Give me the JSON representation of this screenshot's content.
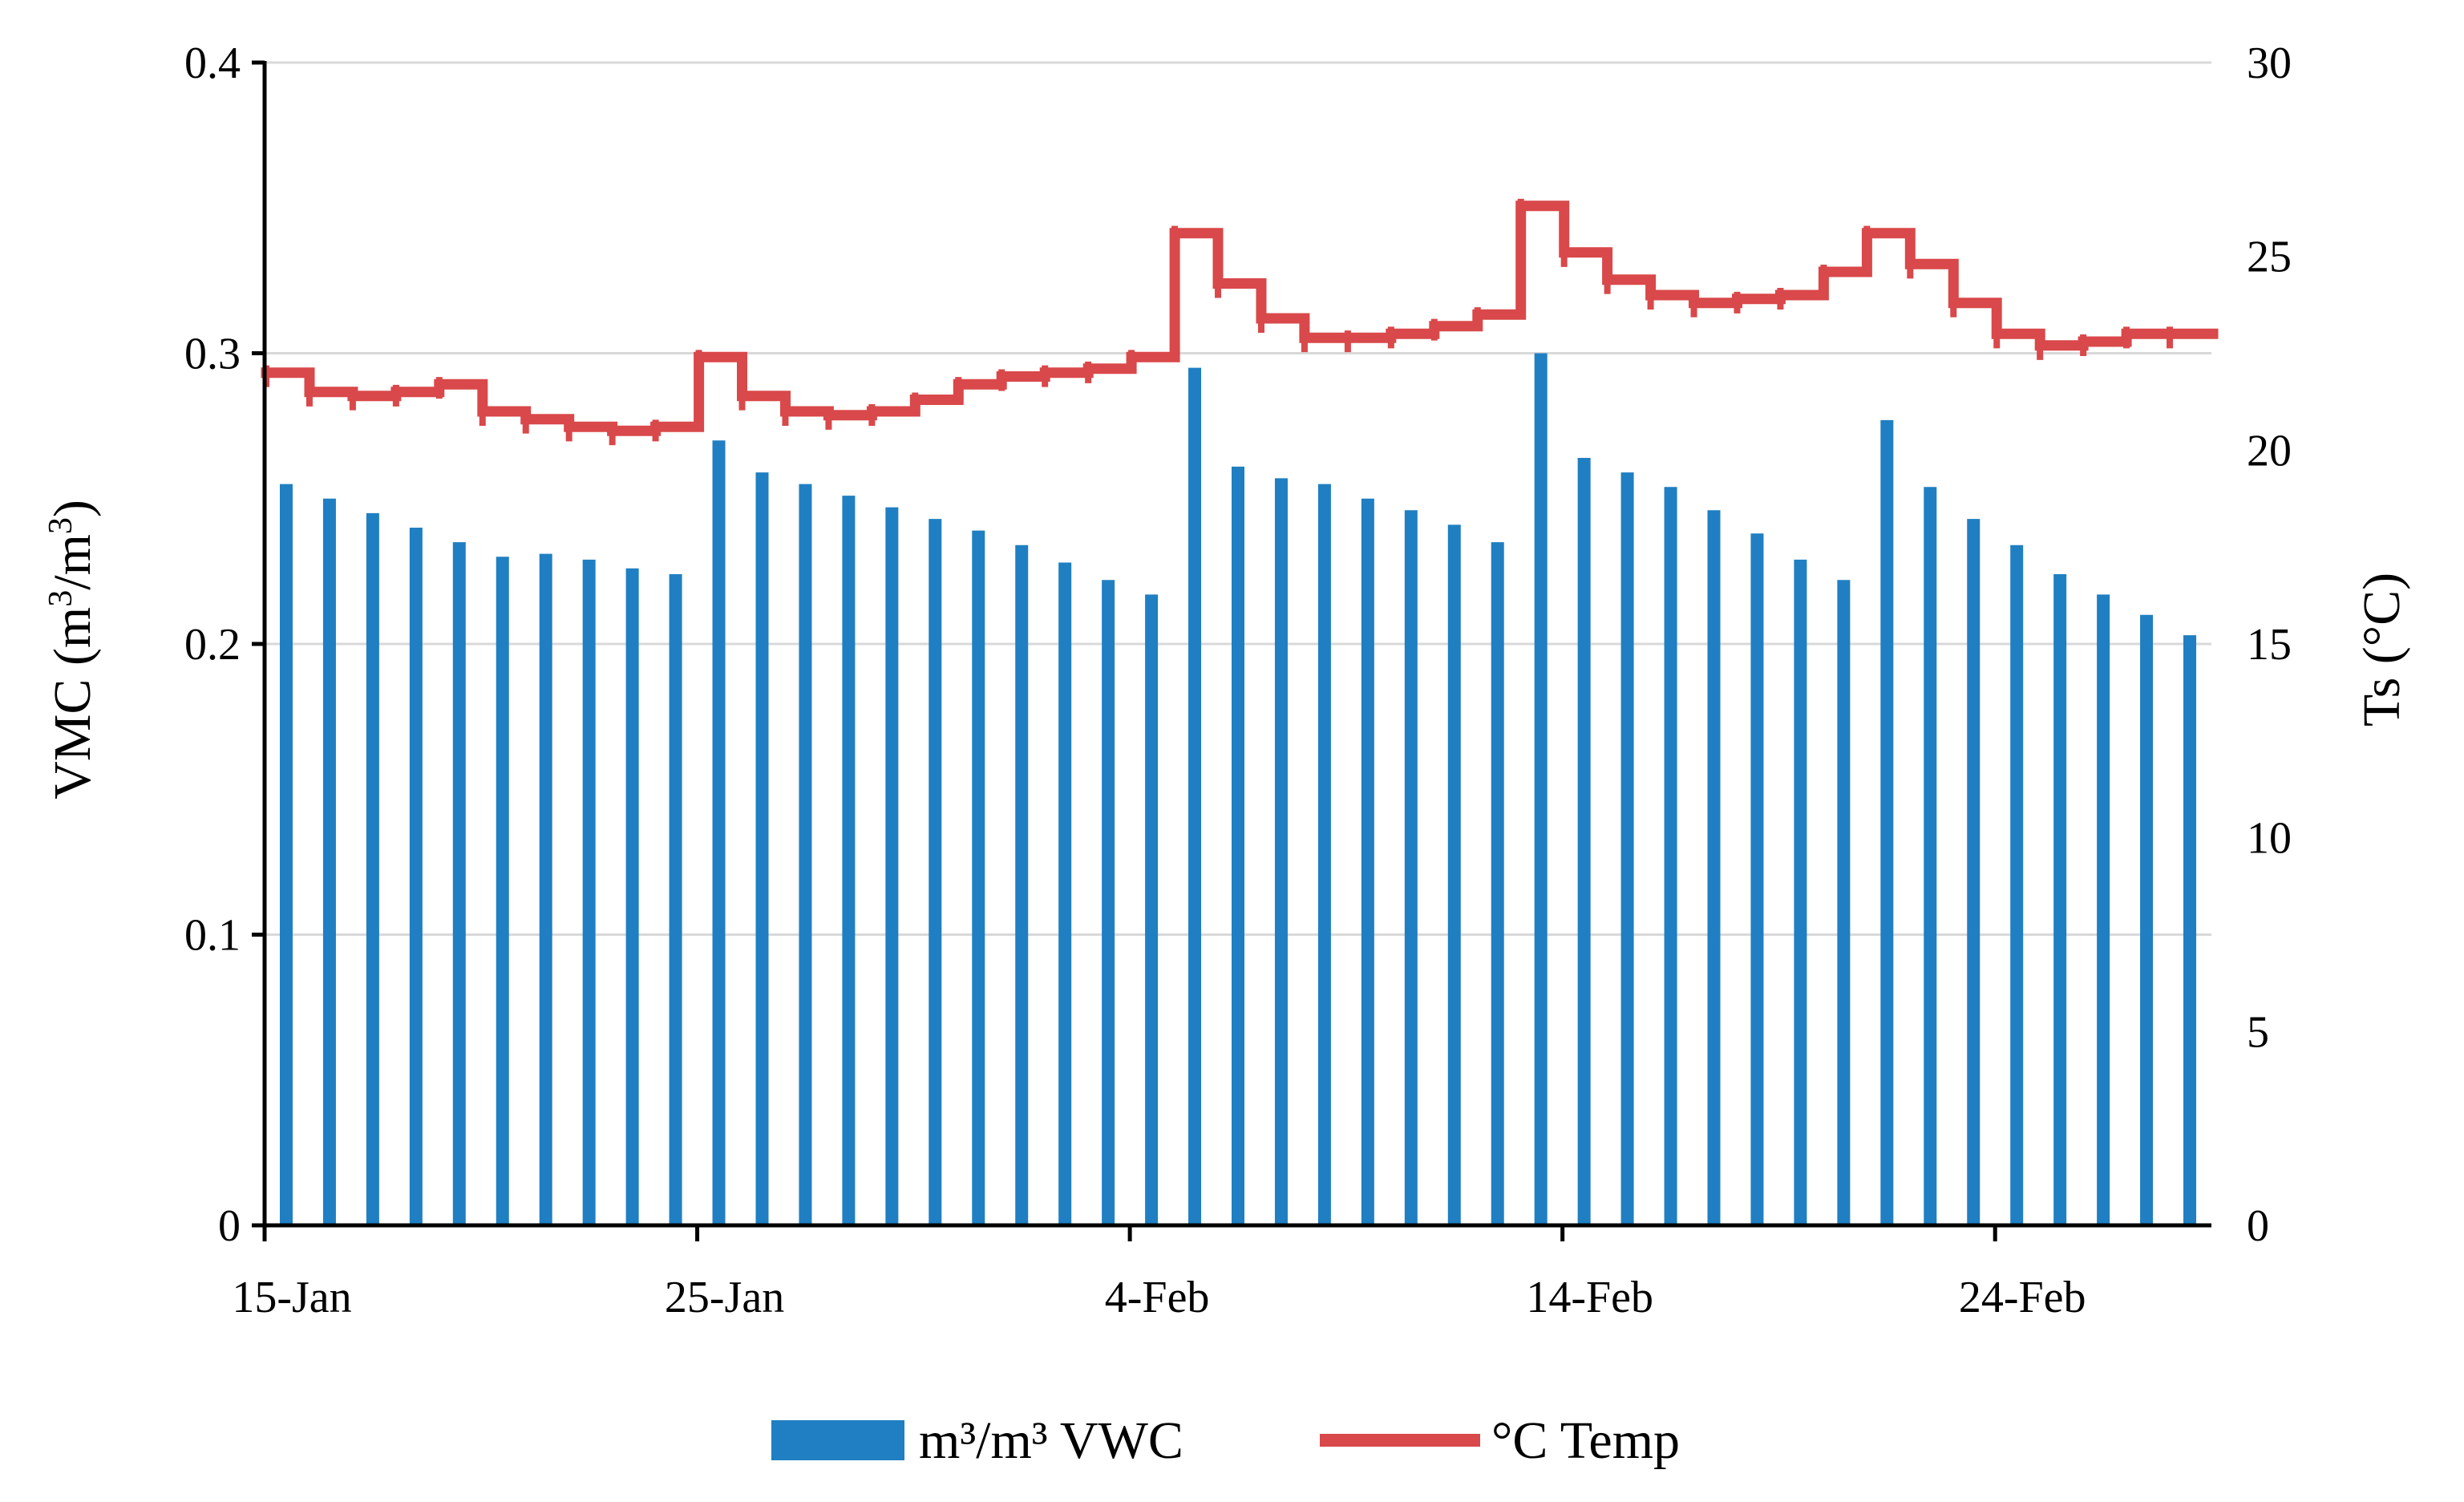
{
  "chart_data": {
    "type": "bar+line",
    "title": "",
    "x_tick_labels": [
      "15-Jan",
      "25-Jan",
      "4-Feb",
      "14-Feb",
      "24-Feb"
    ],
    "x_tick_day_index": [
      0,
      10,
      20,
      30,
      40
    ],
    "y_left": {
      "label_parts": [
        "VMC (m",
        "3",
        "/m",
        "3",
        ")"
      ],
      "range": [
        0,
        0.4
      ],
      "ticks": [
        0,
        0.1,
        0.2,
        0.3,
        0.4
      ],
      "tick_labels": [
        "0",
        "0.1",
        "0.2",
        "0.3",
        "0.4"
      ]
    },
    "y_right": {
      "label": "Ts (°C)",
      "range": [
        0,
        30
      ],
      "ticks": [
        0,
        5,
        10,
        15,
        20,
        25,
        30
      ],
      "tick_labels": [
        "0",
        "5",
        "10",
        "15",
        "20",
        "25",
        "30"
      ]
    },
    "gridlines": true,
    "legend_position": "bottom-center",
    "day_count": 45,
    "series": [
      {
        "name": "m³/m³ VWC",
        "type": "bar",
        "axis": "left",
        "color": "#1F7FC2",
        "values": [
          0.255,
          0.25,
          0.245,
          0.24,
          0.235,
          0.23,
          0.231,
          0.229,
          0.226,
          0.224,
          0.27,
          0.259,
          0.255,
          0.251,
          0.247,
          0.243,
          0.239,
          0.234,
          0.228,
          0.222,
          0.217,
          0.295,
          0.261,
          0.257,
          0.255,
          0.25,
          0.246,
          0.241,
          0.235,
          0.3,
          0.264,
          0.259,
          0.254,
          0.246,
          0.238,
          0.229,
          0.222,
          0.277,
          0.254,
          0.243,
          0.234,
          0.224,
          0.217,
          0.21,
          0.203
        ]
      },
      {
        "name": "°C Temp",
        "type": "line",
        "axis": "right",
        "color": "#D9484A",
        "values": [
          22.0,
          21.5,
          21.4,
          21.5,
          21.7,
          21.0,
          20.8,
          20.6,
          20.5,
          20.6,
          22.4,
          21.4,
          21.0,
          20.9,
          21.0,
          21.3,
          21.7,
          21.9,
          22.0,
          22.1,
          22.4,
          25.6,
          24.3,
          23.4,
          22.9,
          22.9,
          23.0,
          23.2,
          23.5,
          26.3,
          25.1,
          24.4,
          24.0,
          23.8,
          23.9,
          24.0,
          24.6,
          25.6,
          24.8,
          23.8,
          23.0,
          22.7,
          22.8,
          23.0,
          23.0
        ]
      }
    ]
  }
}
